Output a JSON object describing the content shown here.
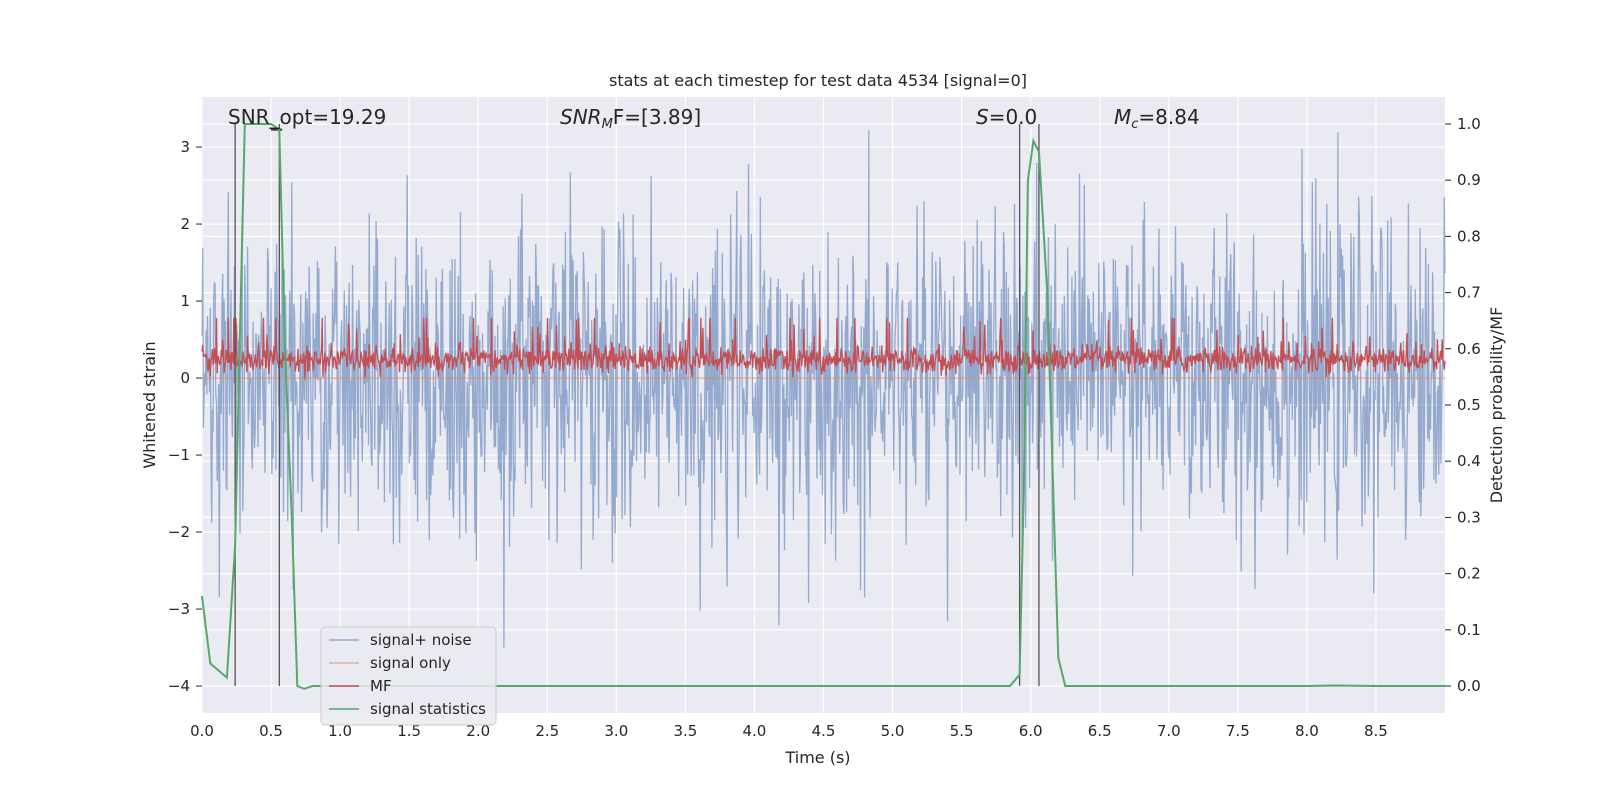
{
  "chart_data": {
    "type": "line",
    "title": "stats at each timestep for test data 4534 [signal=0]",
    "xlabel": "Time (s)",
    "ylabel": "Whitened strain",
    "y2label": "Detection probability/MF",
    "xlim": [
      0.0,
      9.0
    ],
    "ylim": [
      -4.35,
      3.65
    ],
    "y2lim": [
      -0.048,
      1.048
    ],
    "x_ticks": [
      "0.0",
      "0.5",
      "1.0",
      "1.5",
      "2.0",
      "2.5",
      "3.0",
      "3.5",
      "4.0",
      "4.5",
      "5.0",
      "5.5",
      "6.0",
      "6.5",
      "7.0",
      "7.5",
      "8.0",
      "8.5"
    ],
    "y_ticks": [
      "3",
      "2",
      "1",
      "0",
      "−1",
      "−2",
      "−3",
      "−4"
    ],
    "y2_ticks": [
      "1.0",
      "0.9",
      "0.8",
      "0.7",
      "0.6",
      "0.5",
      "0.4",
      "0.3",
      "0.2",
      "0.1",
      "0.0"
    ],
    "grid": true,
    "legend_position": "lower-left",
    "annotations": {
      "snr_opt": "SNR_opt=19.29",
      "snr_mf_prefix": "SNR",
      "snr_mf_sub": "M",
      "snr_mf_suffix": "F=[3.89]",
      "s_prefix": "S",
      "s_suffix": "=0.0",
      "mc_prefix": "M",
      "mc_sub": "c",
      "mc_suffix": "=8.84"
    },
    "series": [
      {
        "name": "signal+ noise",
        "color": "#4c72b0",
        "axis": "left",
        "description": "dense noise trace",
        "noise": {
          "n": 1800,
          "sigma": 1.0,
          "peak_max": 3.3,
          "peak_min": -3.5
        }
      },
      {
        "name": "signal only",
        "color": "#dd8452",
        "axis": "left",
        "x": [
          0.0,
          9.0
        ],
        "y": [
          0.0,
          0.0
        ]
      },
      {
        "name": "MF",
        "color": "#c44e52",
        "axis": "right",
        "description": "matched filter output, fluctuating around 0.58",
        "band": {
          "n": 1800,
          "center": 0.58,
          "low": 0.55,
          "high": 0.64
        }
      },
      {
        "name": "signal statistics",
        "color": "#55a868",
        "axis": "right",
        "x": [
          0.0,
          0.06,
          0.18,
          0.24,
          0.31,
          0.4,
          0.5,
          0.56,
          0.6,
          0.65,
          0.69,
          0.74,
          0.8,
          1.0,
          2.0,
          3.0,
          4.0,
          5.0,
          5.5,
          5.85,
          5.92,
          5.95,
          5.98,
          6.02,
          6.06,
          6.12,
          6.2,
          6.25,
          6.32,
          6.5,
          7.0,
          8.0,
          8.2,
          8.5,
          9.0
        ],
        "y": [
          0.16,
          0.04,
          0.015,
          0.25,
          1.0,
          1.0,
          1.0,
          0.99,
          0.6,
          0.3,
          0.0,
          -0.005,
          0.0,
          0.0,
          0.0,
          0.0,
          0.0,
          0.0,
          0.0,
          0.0,
          0.02,
          0.35,
          0.9,
          0.97,
          0.95,
          0.7,
          0.05,
          0.0,
          0.0,
          0.0,
          0.0,
          0.0,
          0.001,
          0.0,
          0.0
        ]
      }
    ],
    "vlines": [
      0.24,
      0.56,
      5.92,
      6.06
    ]
  }
}
